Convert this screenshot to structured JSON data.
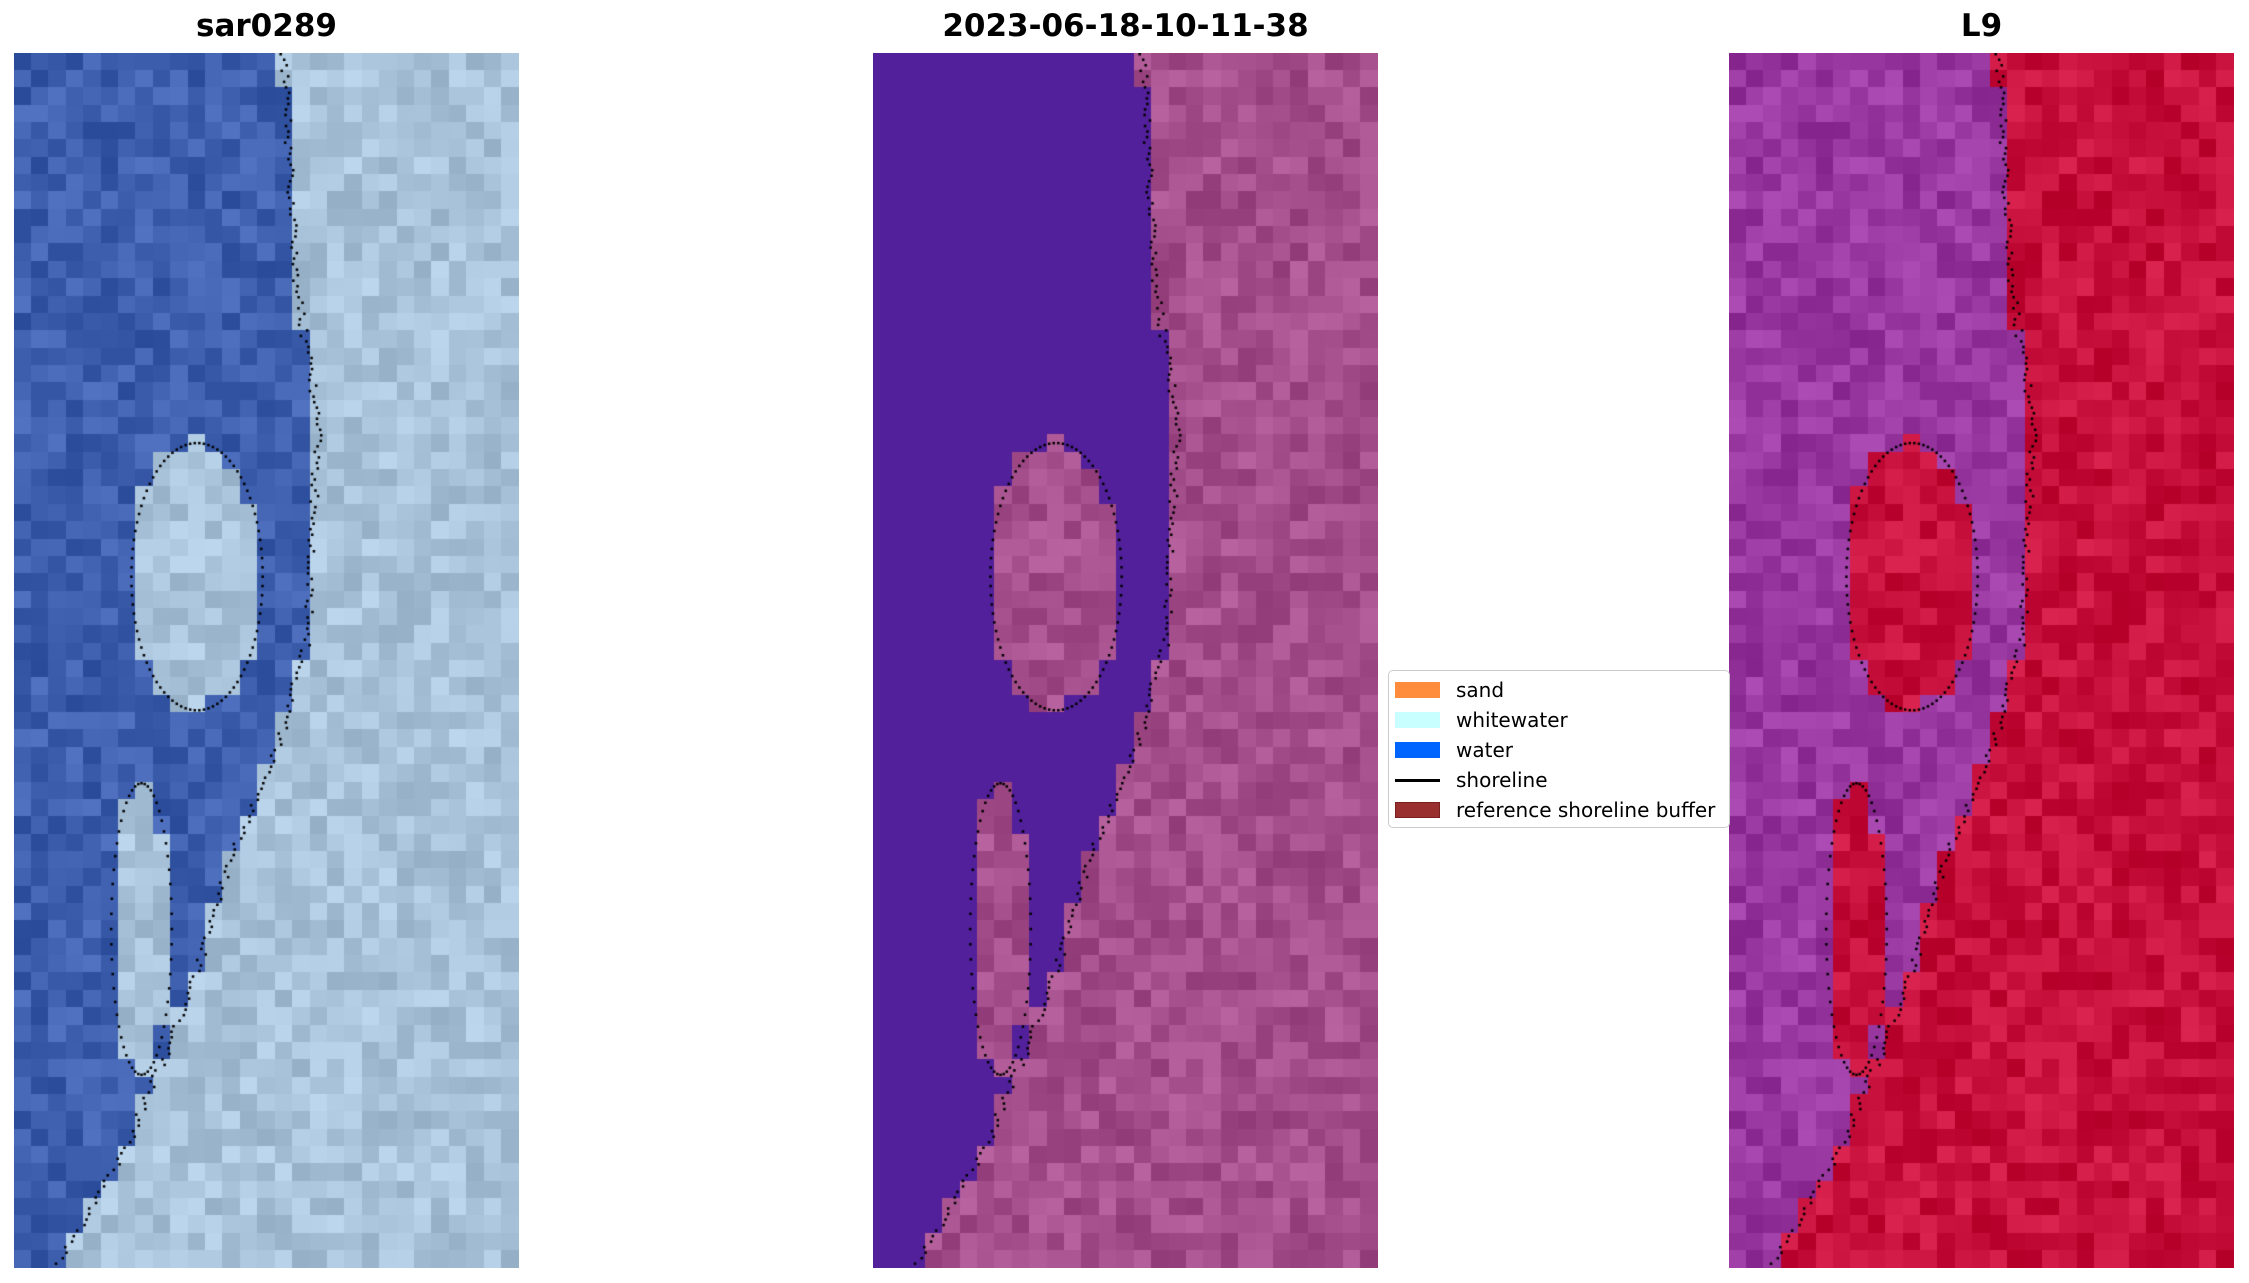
{
  "panels": [
    {
      "title": "sar0289",
      "style": "rgb",
      "water": "#3d5fae",
      "land": "#a9c3da"
    },
    {
      "title": "2023-06-18-10-11-38",
      "style": "classified",
      "water": "#52209a",
      "land": "#a5508c"
    },
    {
      "title": "L9",
      "style": "index",
      "water": "#9838a0",
      "land": "#c8103c"
    }
  ],
  "legend": {
    "items": [
      {
        "label": "sand",
        "color": "#ff8c3c",
        "kind": "patch"
      },
      {
        "label": "whitewater",
        "color": "#c8ffff",
        "kind": "patch"
      },
      {
        "label": "water",
        "color": "#0064ff",
        "kind": "patch"
      },
      {
        "label": "shoreline",
        "color": "#000000",
        "kind": "line"
      },
      {
        "label": "reference shoreline buffer",
        "color": "#9a2f2f",
        "kind": "patch"
      }
    ]
  }
}
